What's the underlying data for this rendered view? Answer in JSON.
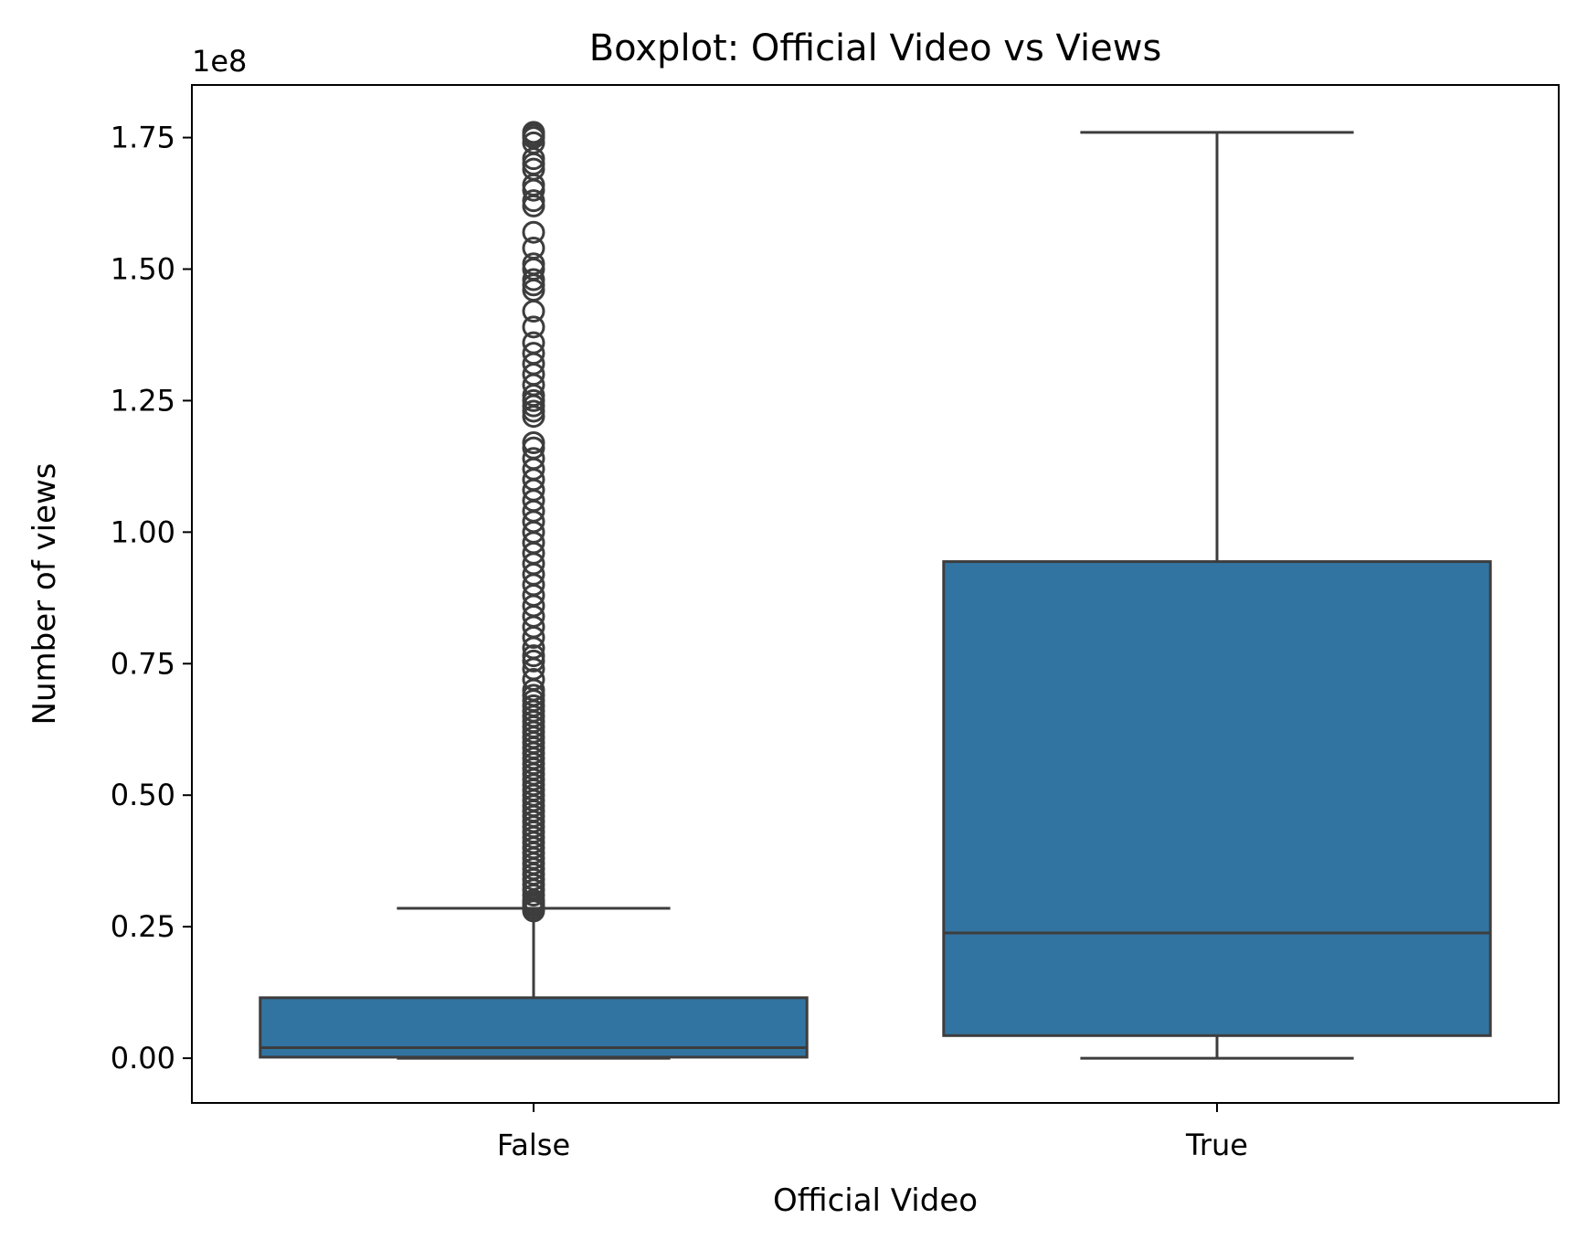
{
  "chart_data": {
    "type": "box",
    "title": "Boxplot: Official Video vs Views",
    "xlabel": "Official Video",
    "ylabel": "Number of views",
    "y_offset_label": "1e8",
    "ylim": [
      -8500000,
      185000000
    ],
    "yticks": [
      0,
      25000000,
      50000000,
      75000000,
      100000000,
      125000000,
      150000000,
      175000000
    ],
    "ytick_labels": [
      "0.00",
      "0.25",
      "0.50",
      "0.75",
      "1.00",
      "1.25",
      "1.50",
      "1.75"
    ],
    "categories": [
      "False",
      "True"
    ],
    "box_color": "#3274a1",
    "line_color": "#3d3d3d",
    "boxes": [
      {
        "category": "False",
        "whisker_low": 0,
        "q1": 200000,
        "median": 2000000,
        "q3": 11500000,
        "whisker_high": 28500000,
        "outliers": [
          28000000,
          28500000,
          29000000,
          29500000,
          30000000,
          31000000,
          32000000,
          33000000,
          34000000,
          35000000,
          36000000,
          37000000,
          38000000,
          39000000,
          40000000,
          41000000,
          42000000,
          43000000,
          44000000,
          45000000,
          46000000,
          47000000,
          48000000,
          49000000,
          50000000,
          51000000,
          52000000,
          53000000,
          54000000,
          55000000,
          56000000,
          57000000,
          58000000,
          59000000,
          60000000,
          61000000,
          62000000,
          63000000,
          64000000,
          65000000,
          66000000,
          67000000,
          68000000,
          69000000,
          70000000,
          72000000,
          74000000,
          75500000,
          76500000,
          78000000,
          80000000,
          82000000,
          84000000,
          86000000,
          88000000,
          90000000,
          92000000,
          94000000,
          96000000,
          98000000,
          100000000,
          102000000,
          104000000,
          106000000,
          108000000,
          110000000,
          112000000,
          114000000,
          116000000,
          117000000,
          122000000,
          123000000,
          124000000,
          125000000,
          126000000,
          128000000,
          130000000,
          132000000,
          134000000,
          136000000,
          139000000,
          142000000,
          146000000,
          147000000,
          148000000,
          150000000,
          151000000,
          154000000,
          157000000,
          162000000,
          163000000,
          165000000,
          166000000,
          169000000,
          170000000,
          171000000,
          174000000,
          175000000,
          175500000,
          176000000
        ]
      },
      {
        "category": "True",
        "whisker_low": 0,
        "q1": 4300000,
        "median": 23800000,
        "q3": 94400000,
        "whisker_high": 176000000,
        "outliers": []
      }
    ]
  }
}
